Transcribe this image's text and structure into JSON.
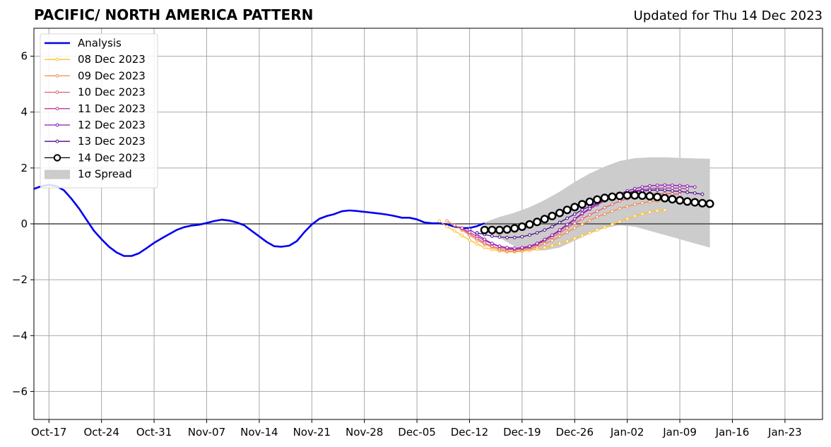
{
  "title": "PACIFIC/ NORTH AMERICA PATTERN",
  "subtitle": "Updated for Thu 14 Dec 2023",
  "chart_data": {
    "type": "line",
    "title": "PACIFIC/ NORTH AMERICA PATTERN",
    "xlabel": "",
    "ylabel": "",
    "x_type": "date",
    "xlim": [
      "2023-10-15",
      "2024-01-28"
    ],
    "ylim": [
      -7,
      7
    ],
    "x_ticks": [
      {
        "date": "2023-10-17",
        "label": "Oct-17"
      },
      {
        "date": "2023-10-24",
        "label": "Oct-24"
      },
      {
        "date": "2023-10-31",
        "label": "Oct-31"
      },
      {
        "date": "2023-11-07",
        "label": "Nov-07"
      },
      {
        "date": "2023-11-14",
        "label": "Nov-14"
      },
      {
        "date": "2023-11-21",
        "label": "Nov-21"
      },
      {
        "date": "2023-11-28",
        "label": "Nov-28"
      },
      {
        "date": "2023-12-05",
        "label": "Dec-05"
      },
      {
        "date": "2023-12-12",
        "label": "Dec-12"
      },
      {
        "date": "2023-12-19",
        "label": "Dec-19"
      },
      {
        "date": "2023-12-26",
        "label": "Dec-26"
      },
      {
        "date": "2024-01-02",
        "label": "Jan-02"
      },
      {
        "date": "2024-01-09",
        "label": "Jan-09"
      },
      {
        "date": "2024-01-16",
        "label": "Jan-16"
      },
      {
        "date": "2024-01-23",
        "label": "Jan-23"
      }
    ],
    "y_ticks": [
      {
        "value": 6,
        "label": "6"
      },
      {
        "value": 4,
        "label": "4"
      },
      {
        "value": 2,
        "label": "2"
      },
      {
        "value": 0,
        "label": "0"
      },
      {
        "value": -2,
        "label": "−2"
      },
      {
        "value": -4,
        "label": "−4"
      },
      {
        "value": -6,
        "label": "−6"
      }
    ],
    "grid": true,
    "zero_line": true,
    "legend_position": "top-left",
    "legend_spread_label": "1σ Spread",
    "spread_color": "#cccccc",
    "spread": {
      "x": [
        "2023-12-14",
        "2023-12-16",
        "2023-12-18",
        "2023-12-20",
        "2023-12-22",
        "2023-12-24",
        "2023-12-26",
        "2023-12-28",
        "2023-12-30",
        "2024-01-01",
        "2024-01-03",
        "2024-01-05",
        "2024-01-07",
        "2024-01-09",
        "2024-01-11",
        "2024-01-13"
      ],
      "upper": [
        0.05,
        0.25,
        0.4,
        0.6,
        0.85,
        1.15,
        1.5,
        1.8,
        2.05,
        2.25,
        2.35,
        2.38,
        2.38,
        2.36,
        2.34,
        2.33
      ],
      "lower": [
        -0.2,
        -0.5,
        -0.8,
        -0.95,
        -0.95,
        -0.85,
        -0.6,
        -0.35,
        -0.15,
        -0.05,
        -0.1,
        -0.25,
        -0.4,
        -0.55,
        -0.7,
        -0.85
      ]
    },
    "series": [
      {
        "name": "Analysis",
        "color": "#0000ee",
        "style": "analysis",
        "x": [
          "2023-10-15",
          "2023-10-16",
          "2023-10-17",
          "2023-10-18",
          "2023-10-19",
          "2023-10-20",
          "2023-10-21",
          "2023-10-22",
          "2023-10-23",
          "2023-10-24",
          "2023-10-25",
          "2023-10-26",
          "2023-10-27",
          "2023-10-28",
          "2023-10-29",
          "2023-10-30",
          "2023-10-31",
          "2023-11-01",
          "2023-11-02",
          "2023-11-03",
          "2023-11-04",
          "2023-11-05",
          "2023-11-06",
          "2023-11-07",
          "2023-11-08",
          "2023-11-09",
          "2023-11-10",
          "2023-11-11",
          "2023-11-12",
          "2023-11-13",
          "2023-11-14",
          "2023-11-15",
          "2023-11-16",
          "2023-11-17",
          "2023-11-18",
          "2023-11-19",
          "2023-11-20",
          "2023-11-21",
          "2023-11-22",
          "2023-11-23",
          "2023-11-24",
          "2023-11-25",
          "2023-11-26",
          "2023-11-27",
          "2023-11-28",
          "2023-11-29",
          "2023-11-30",
          "2023-12-01",
          "2023-12-02",
          "2023-12-03",
          "2023-12-04",
          "2023-12-05",
          "2023-12-06",
          "2023-12-07",
          "2023-12-08",
          "2023-12-09",
          "2023-12-10",
          "2023-12-11",
          "2023-12-12",
          "2023-12-13",
          "2023-12-14"
        ],
        "values": [
          1.25,
          1.35,
          1.4,
          1.35,
          1.2,
          0.9,
          0.55,
          0.15,
          -0.25,
          -0.55,
          -0.82,
          -1.02,
          -1.15,
          -1.15,
          -1.05,
          -0.87,
          -0.68,
          -0.52,
          -0.37,
          -0.22,
          -0.12,
          -0.06,
          -0.03,
          0.03,
          0.1,
          0.15,
          0.12,
          0.05,
          -0.05,
          -0.25,
          -0.45,
          -0.65,
          -0.8,
          -0.82,
          -0.78,
          -0.62,
          -0.3,
          -0.02,
          0.18,
          0.28,
          0.35,
          0.45,
          0.48,
          0.46,
          0.43,
          0.4,
          0.37,
          0.33,
          0.28,
          0.22,
          0.22,
          0.16,
          0.05,
          0.02,
          0.02,
          -0.02,
          -0.1,
          -0.15,
          -0.15,
          -0.08,
          0.02
        ]
      },
      {
        "name": "08 Dec 2023",
        "color": "#ffbf2a",
        "style": "forecast",
        "x": [
          "2023-12-08",
          "2023-12-09",
          "2023-12-10",
          "2023-12-11",
          "2023-12-12",
          "2023-12-13",
          "2023-12-14",
          "2023-12-15",
          "2023-12-16",
          "2023-12-17",
          "2023-12-18",
          "2023-12-19",
          "2023-12-20",
          "2023-12-21",
          "2023-12-22",
          "2023-12-23",
          "2023-12-24",
          "2023-12-25",
          "2023-12-26",
          "2023-12-27",
          "2023-12-28",
          "2023-12-29",
          "2023-12-30",
          "2023-12-31",
          "2024-01-01",
          "2024-01-02",
          "2024-01-03",
          "2024-01-04",
          "2024-01-05",
          "2024-01-06",
          "2024-01-07"
        ],
        "values": [
          0.1,
          -0.1,
          -0.25,
          -0.42,
          -0.58,
          -0.72,
          -0.85,
          -0.92,
          -0.97,
          -1.0,
          -1.0,
          -0.98,
          -0.95,
          -0.9,
          -0.85,
          -0.78,
          -0.7,
          -0.62,
          -0.52,
          -0.42,
          -0.32,
          -0.22,
          -0.12,
          -0.02,
          0.08,
          0.18,
          0.28,
          0.35,
          0.42,
          0.47,
          0.5
        ]
      },
      {
        "name": "09 Dec 2023",
        "color": "#f08a4b",
        "style": "forecast",
        "x": [
          "2023-12-09",
          "2023-12-10",
          "2023-12-11",
          "2023-12-12",
          "2023-12-13",
          "2023-12-14",
          "2023-12-15",
          "2023-12-16",
          "2023-12-17",
          "2023-12-18",
          "2023-12-19",
          "2023-12-20",
          "2023-12-21",
          "2023-12-22",
          "2023-12-23",
          "2023-12-24",
          "2023-12-25",
          "2023-12-26",
          "2023-12-27",
          "2023-12-28",
          "2023-12-29",
          "2023-12-30",
          "2023-12-31",
          "2024-01-01",
          "2024-01-02",
          "2024-01-03",
          "2024-01-04",
          "2024-01-05",
          "2024-01-06",
          "2024-01-07",
          "2024-01-08"
        ],
        "values": [
          0.1,
          -0.05,
          -0.22,
          -0.4,
          -0.58,
          -0.72,
          -0.84,
          -0.93,
          -0.98,
          -0.98,
          -0.95,
          -0.9,
          -0.82,
          -0.72,
          -0.6,
          -0.45,
          -0.3,
          -0.15,
          -0.02,
          0.12,
          0.25,
          0.35,
          0.45,
          0.55,
          0.62,
          0.7,
          0.75,
          0.8,
          0.82,
          0.85,
          0.88
        ]
      },
      {
        "name": "10 Dec 2023",
        "color": "#e0606a",
        "style": "forecast",
        "x": [
          "2023-12-10",
          "2023-12-11",
          "2023-12-12",
          "2023-12-13",
          "2023-12-14",
          "2023-12-15",
          "2023-12-16",
          "2023-12-17",
          "2023-12-18",
          "2023-12-19",
          "2023-12-20",
          "2023-12-21",
          "2023-12-22",
          "2023-12-23",
          "2023-12-24",
          "2023-12-25",
          "2023-12-26",
          "2023-12-27",
          "2023-12-28",
          "2023-12-29",
          "2023-12-30",
          "2023-12-31",
          "2024-01-01",
          "2024-01-02",
          "2024-01-03",
          "2024-01-04",
          "2024-01-05",
          "2024-01-06",
          "2024-01-07",
          "2024-01-08",
          "2024-01-09"
        ],
        "values": [
          -0.05,
          -0.18,
          -0.35,
          -0.52,
          -0.68,
          -0.8,
          -0.88,
          -0.92,
          -0.93,
          -0.9,
          -0.85,
          -0.75,
          -0.62,
          -0.48,
          -0.32,
          -0.15,
          0.02,
          0.18,
          0.32,
          0.45,
          0.58,
          0.7,
          0.82,
          0.9,
          0.98,
          1.02,
          1.05,
          1.07,
          1.08,
          1.08,
          1.05
        ]
      },
      {
        "name": "11 Dec 2023",
        "color": "#b8389a",
        "style": "forecast",
        "x": [
          "2023-12-11",
          "2023-12-12",
          "2023-12-13",
          "2023-12-14",
          "2023-12-15",
          "2023-12-16",
          "2023-12-17",
          "2023-12-18",
          "2023-12-19",
          "2023-12-20",
          "2023-12-21",
          "2023-12-22",
          "2023-12-23",
          "2023-12-24",
          "2023-12-25",
          "2023-12-26",
          "2023-12-27",
          "2023-12-28",
          "2023-12-29",
          "2023-12-30",
          "2023-12-31",
          "2024-01-01",
          "2024-01-02",
          "2024-01-03",
          "2024-01-04",
          "2024-01-05",
          "2024-01-06",
          "2024-01-07",
          "2024-01-08",
          "2024-01-09",
          "2024-01-10"
        ],
        "values": [
          -0.15,
          -0.3,
          -0.45,
          -0.6,
          -0.72,
          -0.82,
          -0.88,
          -0.9,
          -0.88,
          -0.82,
          -0.72,
          -0.58,
          -0.42,
          -0.25,
          -0.05,
          0.15,
          0.35,
          0.52,
          0.68,
          0.82,
          0.95,
          1.05,
          1.12,
          1.18,
          1.22,
          1.25,
          1.27,
          1.28,
          1.28,
          1.27,
          1.25
        ]
      },
      {
        "name": "12 Dec 2023",
        "color": "#8a1ab8",
        "style": "forecast",
        "x": [
          "2023-12-12",
          "2023-12-13",
          "2023-12-14",
          "2023-12-15",
          "2023-12-16",
          "2023-12-17",
          "2023-12-18",
          "2023-12-19",
          "2023-12-20",
          "2023-12-21",
          "2023-12-22",
          "2023-12-23",
          "2023-12-24",
          "2023-12-25",
          "2023-12-26",
          "2023-12-27",
          "2023-12-28",
          "2023-12-29",
          "2023-12-30",
          "2023-12-31",
          "2024-01-01",
          "2024-01-02",
          "2024-01-03",
          "2024-01-04",
          "2024-01-05",
          "2024-01-06",
          "2024-01-07",
          "2024-01-08",
          "2024-01-09",
          "2024-01-10",
          "2024-01-11"
        ],
        "values": [
          -0.2,
          -0.38,
          -0.55,
          -0.7,
          -0.8,
          -0.85,
          -0.87,
          -0.85,
          -0.8,
          -0.7,
          -0.56,
          -0.4,
          -0.22,
          -0.02,
          0.18,
          0.38,
          0.55,
          0.72,
          0.86,
          0.98,
          1.08,
          1.18,
          1.26,
          1.32,
          1.36,
          1.38,
          1.39,
          1.38,
          1.37,
          1.35,
          1.32
        ]
      },
      {
        "name": "13 Dec 2023",
        "color": "#4a0a8a",
        "style": "forecast",
        "x": [
          "2023-12-13",
          "2023-12-14",
          "2023-12-15",
          "2023-12-16",
          "2023-12-17",
          "2023-12-18",
          "2023-12-19",
          "2023-12-20",
          "2023-12-21",
          "2023-12-22",
          "2023-12-23",
          "2023-12-24",
          "2023-12-25",
          "2023-12-26",
          "2023-12-27",
          "2023-12-28",
          "2023-12-29",
          "2023-12-30",
          "2023-12-31",
          "2024-01-01",
          "2024-01-02",
          "2024-01-03",
          "2024-01-04",
          "2024-01-05",
          "2024-01-06",
          "2024-01-07",
          "2024-01-08",
          "2024-01-09",
          "2024-01-10",
          "2024-01-11",
          "2024-01-12"
        ],
        "values": [
          -0.32,
          -0.38,
          -0.44,
          -0.47,
          -0.49,
          -0.49,
          -0.46,
          -0.4,
          -0.32,
          -0.22,
          -0.1,
          0.05,
          0.2,
          0.35,
          0.5,
          0.63,
          0.75,
          0.85,
          0.95,
          1.03,
          1.1,
          1.15,
          1.18,
          1.2,
          1.21,
          1.2,
          1.18,
          1.16,
          1.13,
          1.1,
          1.06
        ]
      },
      {
        "name": "14 Dec 2023",
        "color": "#000000",
        "style": "current",
        "x": [
          "2023-12-14",
          "2023-12-15",
          "2023-12-16",
          "2023-12-17",
          "2023-12-18",
          "2023-12-19",
          "2023-12-20",
          "2023-12-21",
          "2023-12-22",
          "2023-12-23",
          "2023-12-24",
          "2023-12-25",
          "2023-12-26",
          "2023-12-27",
          "2023-12-28",
          "2023-12-29",
          "2023-12-30",
          "2023-12-31",
          "2024-01-01",
          "2024-01-02",
          "2024-01-03",
          "2024-01-04",
          "2024-01-05",
          "2024-01-06",
          "2024-01-07",
          "2024-01-08",
          "2024-01-09",
          "2024-01-10",
          "2024-01-11",
          "2024-01-12",
          "2024-01-13"
        ],
        "values": [
          -0.22,
          -0.22,
          -0.22,
          -0.2,
          -0.16,
          -0.1,
          -0.02,
          0.07,
          0.17,
          0.28,
          0.39,
          0.5,
          0.6,
          0.7,
          0.79,
          0.87,
          0.93,
          0.97,
          1.0,
          1.02,
          1.02,
          1.01,
          0.99,
          0.96,
          0.92,
          0.88,
          0.84,
          0.8,
          0.77,
          0.74,
          0.72
        ]
      }
    ]
  }
}
